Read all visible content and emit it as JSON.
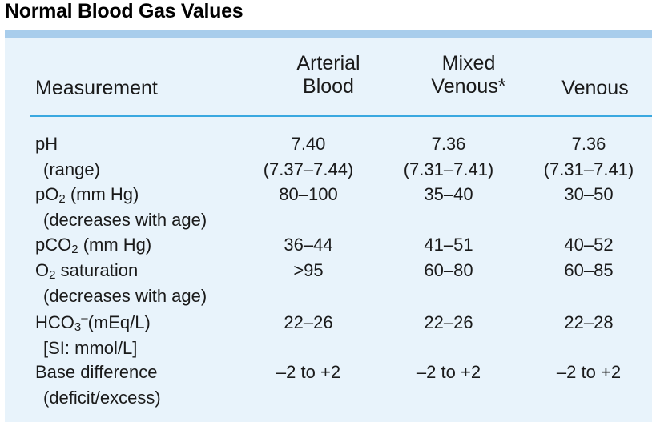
{
  "title": "Normal Blood Gas Values",
  "columns": {
    "measurement": "Measurement",
    "arterial_line1": "Arterial",
    "arterial_line2": "Blood",
    "mixed_line1": "Mixed",
    "mixed_line2": "Venous*",
    "venous": "Venous"
  },
  "rows": {
    "ph": {
      "label": "pH",
      "sub": "(range)",
      "arterial": "7.40",
      "arterial_sub": "(7.37–7.44)",
      "mixed": "7.36",
      "mixed_sub": "(7.31–7.41)",
      "venous": "7.36",
      "venous_sub": "(7.31–7.41)"
    },
    "po2": {
      "label_pre": "pO",
      "label_sub": "2",
      "label_post": " (mm Hg)",
      "sub": "(decreases with age)",
      "arterial": "80–100",
      "mixed": "35–40",
      "venous": "30–50"
    },
    "pco2": {
      "label_pre": "pCO",
      "label_sub": "2",
      "label_post": " (mm Hg)",
      "arterial": "36–44",
      "mixed": "41–51",
      "venous": "40–52"
    },
    "o2sat": {
      "label_pre": "O",
      "label_sub": "2",
      "label_post": " saturation",
      "sub": "(decreases with age)",
      "arterial": ">95",
      "mixed": "60–80",
      "venous": "60–85"
    },
    "hco3": {
      "label_pre": "HCO",
      "label_sub": "3",
      "label_sup": "–",
      "label_post": "(mEq/L)",
      "sub": "[SI: mmol/L]",
      "arterial": "22–26",
      "mixed": "22–26",
      "venous": "22–28"
    },
    "base": {
      "label": "Base difference",
      "sub": "(deficit/excess)",
      "arterial": "–2 to +2",
      "mixed": "–2 to +2",
      "venous": "–2 to +2"
    }
  },
  "colors": {
    "panel_bg": "#e8f3fb",
    "top_rule": "#a8cdec",
    "header_rule": "#3aa8e0"
  }
}
